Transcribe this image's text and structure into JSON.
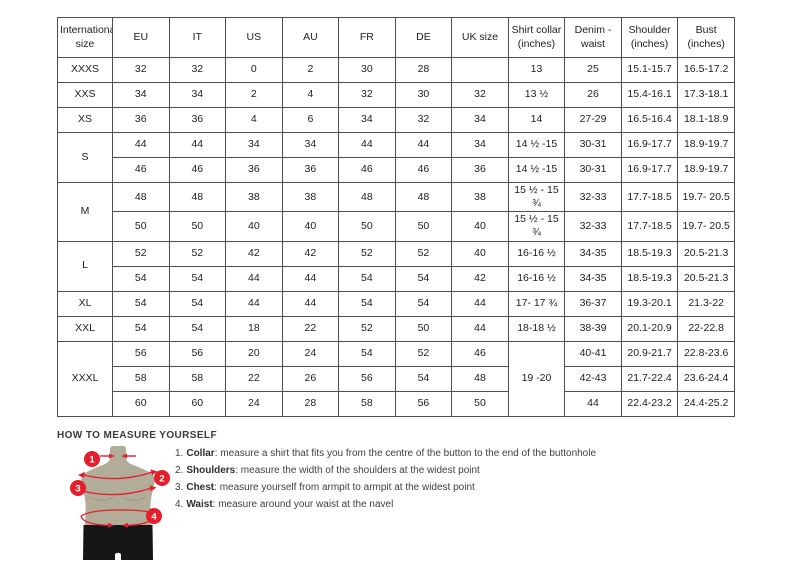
{
  "size_chart": {
    "headers": [
      "International size",
      "EU",
      "IT",
      "US",
      "AU",
      "FR",
      "DE",
      "UK size",
      "Shirt collar (inches)",
      "Denim - waist",
      "Shoulder (inches)",
      "Bust (inches)"
    ],
    "rows": [
      {
        "size": "XXXS",
        "size_rowspan": 1,
        "cells": [
          "32",
          "32",
          "0",
          "2",
          "30",
          "28",
          "",
          "13",
          "25",
          "15.1-15.7",
          "16.5-17.2"
        ]
      },
      {
        "size": "XXS",
        "size_rowspan": 1,
        "cells": [
          "34",
          "34",
          "2",
          "4",
          "32",
          "30",
          "32",
          "13 ½",
          "26",
          "15.4-16.1",
          "17.3-18.1"
        ]
      },
      {
        "size": "XS",
        "size_rowspan": 1,
        "cells": [
          "36",
          "36",
          "4",
          "6",
          "34",
          "32",
          "34",
          "14",
          "27-29",
          "16.5-16.4",
          "18.1-18.9"
        ]
      },
      {
        "size": "S",
        "size_rowspan": 2,
        "cells": [
          "44",
          "44",
          "34",
          "34",
          "44",
          "44",
          "34",
          "14 ½ -15",
          "30-31",
          "16.9-17.7",
          "18.9-19.7"
        ]
      },
      {
        "cells": [
          "46",
          "46",
          "36",
          "36",
          "46",
          "46",
          "36",
          "14 ½ -15",
          "30-31",
          "16.9-17.7",
          "18.9-19.7"
        ]
      },
      {
        "size": "M",
        "size_rowspan": 2,
        "cells": [
          "48",
          "48",
          "38",
          "38",
          "48",
          "48",
          "38",
          "15 ½ - 15 ¾",
          "32-33",
          "17.7-18.5",
          "19.7- 20.5"
        ]
      },
      {
        "cells": [
          "50",
          "50",
          "40",
          "40",
          "50",
          "50",
          "40",
          "15 ½ - 15 ¾",
          "32-33",
          "17.7-18.5",
          "19.7- 20.5"
        ]
      },
      {
        "size": "L",
        "size_rowspan": 2,
        "cells": [
          "52",
          "52",
          "42",
          "42",
          "52",
          "52",
          "40",
          "16-16 ½",
          "34-35",
          "18.5-19.3",
          "20.5-21.3"
        ]
      },
      {
        "cells": [
          "54",
          "54",
          "44",
          "44",
          "54",
          "54",
          "42",
          "16-16 ½",
          "34-35",
          "18.5-19.3",
          "20.5-21.3"
        ]
      },
      {
        "size": "XL",
        "size_rowspan": 1,
        "cells": [
          "54",
          "54",
          "44",
          "44",
          "54",
          "54",
          "44",
          "17- 17 ¾",
          "36-37",
          "19.3-20.1",
          "21.3-22"
        ]
      },
      {
        "size": "XXL",
        "size_rowspan": 1,
        "cells": [
          "54",
          "54",
          "18",
          "22",
          "52",
          "50",
          "44",
          "18-18 ½",
          "38-39",
          "20.1-20.9",
          "22-22.8"
        ]
      },
      {
        "size": "XXXL",
        "size_rowspan": 3,
        "cells": [
          "56",
          "56",
          "20",
          "24",
          "54",
          "52",
          "46",
          {
            "text": "19 -20",
            "rowspan": 3
          },
          "40-41",
          "20.9-21.7",
          "22.8-23.6"
        ]
      },
      {
        "cells": [
          "58",
          "58",
          "22",
          "26",
          "56",
          "54",
          "48",
          "42-43",
          "21.7-22.4",
          "23.6-24.4"
        ]
      },
      {
        "cells": [
          "60",
          "60",
          "24",
          "28",
          "58",
          "56",
          "50",
          "44",
          "22.4-23.2",
          "24.4-25.2"
        ]
      }
    ]
  },
  "measure_guide": {
    "title": "HOW TO MEASURE YOURSELF",
    "steps": [
      {
        "num": "1.",
        "label": "Collar",
        "text": ": measure a shirt that fits you from the centre of the button to the end of the buttonhole"
      },
      {
        "num": "2.",
        "label": "Shoulders",
        "text": ": measure the width of the shoulders at the widest point"
      },
      {
        "num": "3.",
        "label": "Chest",
        "text": ": measure yourself from armpit to armpit at the widest point"
      },
      {
        "num": "4.",
        "label": "Waist",
        "text": ": measure around your waist at the navel"
      }
    ],
    "badges": [
      "1",
      "2",
      "3",
      "4"
    ]
  },
  "colors": {
    "accent_red": "#e51e2c",
    "torso": "#b2ad99",
    "torso_shadow": "#9c967f",
    "shorts": "#161616",
    "table_border": "#4f4f4f",
    "text": "#1e1e1e"
  }
}
